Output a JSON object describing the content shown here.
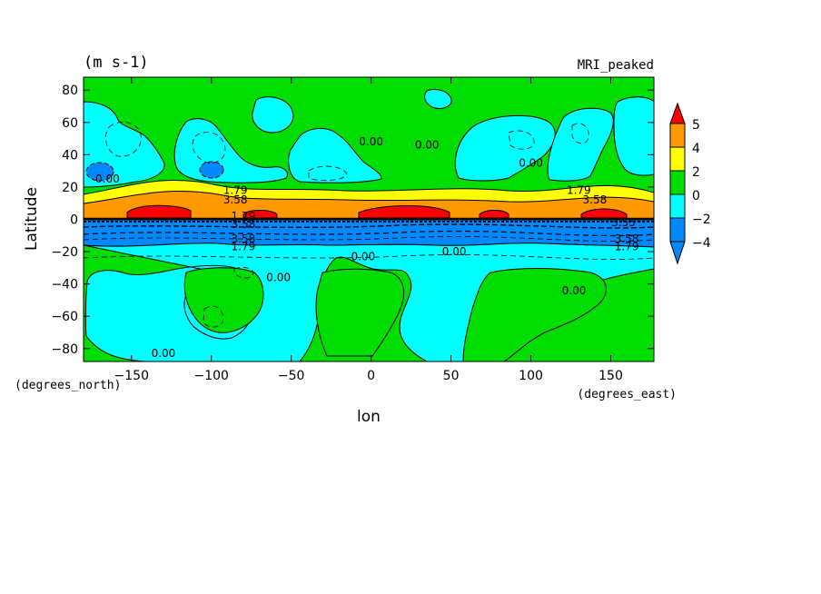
{
  "chart_data": {
    "type": "contour",
    "units": "(m s-1)",
    "model_label": "MRI_peaked",
    "xlabel": "lon",
    "ylabel": "Latitude",
    "x_units": "(degrees_east)",
    "y_units": "(degrees_north)",
    "xlim": [
      -180,
      177
    ],
    "ylim": [
      -88,
      88
    ],
    "x_ticks": [
      -150,
      -100,
      -50,
      0,
      50,
      100,
      150
    ],
    "y_ticks": [
      80,
      60,
      40,
      20,
      0,
      -20,
      -40,
      -60,
      -80
    ],
    "colorbar": {
      "levels": [
        -4,
        -2,
        0,
        2,
        4,
        5
      ],
      "tick_labels": [
        "5",
        "4",
        "2",
        "0",
        "−2",
        "−4"
      ],
      "colors": {
        "above_5": "#ff0000",
        "4_to_5": "#ff9900",
        "2_to_4": "#ffff00",
        "0_to_2": "#00dd00",
        "m2_to_0": "#00ffff",
        "below_m2": "#0088ff"
      }
    },
    "contour_labels": [
      {
        "text": "0.00",
        "lon": -165,
        "lat": 25
      },
      {
        "text": "0.00",
        "lon": 0,
        "lat": 48
      },
      {
        "text": "0.00",
        "lon": 35,
        "lat": 46
      },
      {
        "text": "0.00",
        "lon": 100,
        "lat": 35
      },
      {
        "text": "1.79",
        "lon": -85,
        "lat": 18
      },
      {
        "text": "3.58",
        "lon": -85,
        "lat": 12
      },
      {
        "text": "1.79",
        "lon": 130,
        "lat": 18
      },
      {
        "text": "3.58",
        "lon": 140,
        "lat": 12
      },
      {
        "text": "1.79",
        "lon": -80,
        "lat": 2
      },
      {
        "text": "3.58",
        "lon": -80,
        "lat": -3
      },
      {
        "text": "3.58",
        "lon": -80,
        "lat": -12
      },
      {
        "text": "1.79",
        "lon": -80,
        "lat": -17
      },
      {
        "text": "3.58",
        "lon": 160,
        "lat": -12
      },
      {
        "text": "1.79",
        "lon": 160,
        "lat": -17
      },
      {
        "text": "3.55",
        "lon": 158,
        "lat": -2
      },
      {
        "text": "0.00",
        "lon": -58,
        "lat": -36
      },
      {
        "text": "0.00",
        "lon": -5,
        "lat": -23
      },
      {
        "text": "0.00",
        "lon": 52,
        "lat": -20
      },
      {
        "text": "0.00",
        "lon": 127,
        "lat": -44
      },
      {
        "text": "0.00",
        "lon": -130,
        "lat": -83
      }
    ]
  }
}
